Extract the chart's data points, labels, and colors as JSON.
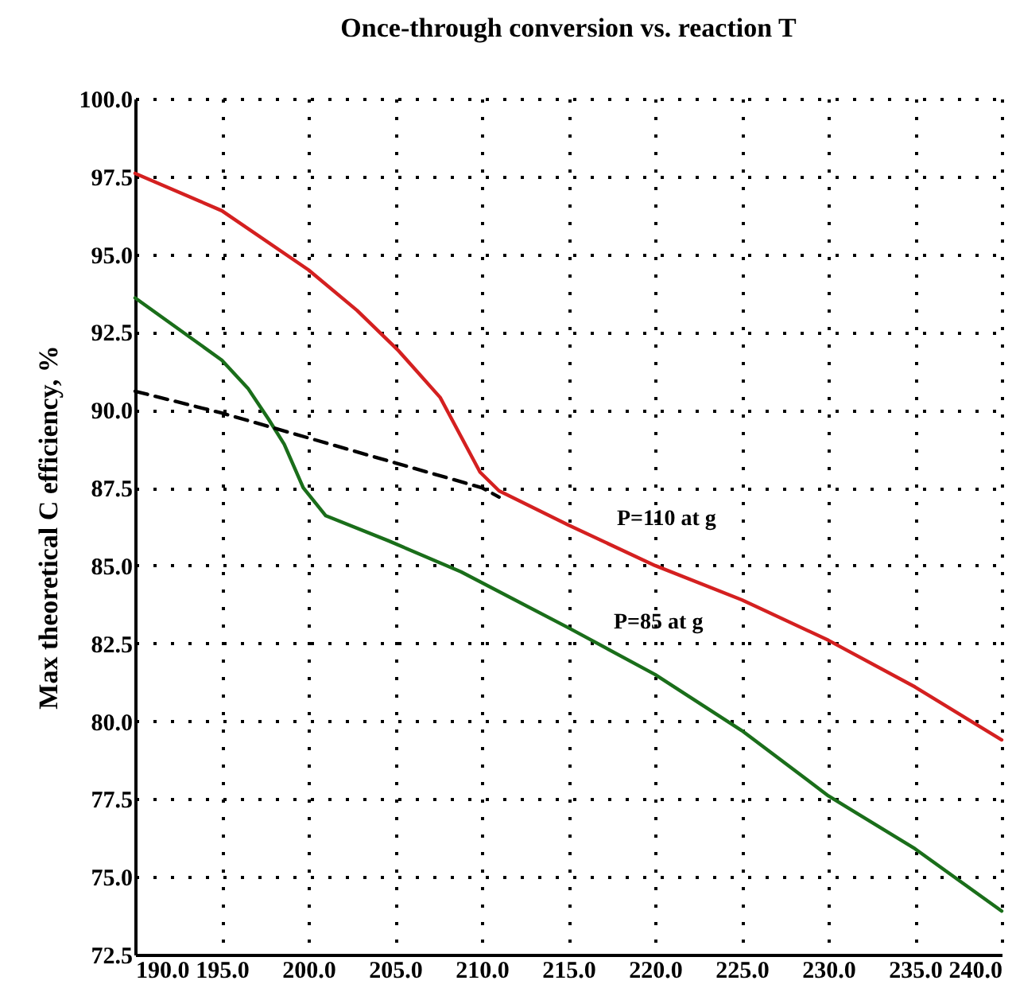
{
  "chart_data": {
    "type": "line",
    "title": "Once-through conversion vs. reaction T",
    "ylabel": "Max theoretical C efficiency, %",
    "xlim": [
      190,
      240
    ],
    "ylim": [
      72.5,
      100
    ],
    "xticks": [
      {
        "value": 190,
        "label": "190.0"
      },
      {
        "value": 195,
        "label": "195.0"
      },
      {
        "value": 200,
        "label": "200.0"
      },
      {
        "value": 205,
        "label": "205.0"
      },
      {
        "value": 210,
        "label": "210.0"
      },
      {
        "value": 215,
        "label": "215.0"
      },
      {
        "value": 220,
        "label": "220.0"
      },
      {
        "value": 225,
        "label": "225.0"
      },
      {
        "value": 230,
        "label": "230.0"
      },
      {
        "value": 235,
        "label": "235.0"
      },
      {
        "value": 240,
        "label": "240.0"
      }
    ],
    "yticks": [
      72.5,
      {
        "value": 75,
        "label": "75.0"
      },
      77.5,
      {
        "value": 80,
        "label": "80.0"
      },
      82.5,
      {
        "value": 85,
        "label": "85.0"
      },
      87.5,
      {
        "value": 90,
        "label": "90.0"
      },
      92.5,
      {
        "value": 95,
        "label": "95.0"
      },
      97.5,
      {
        "value": 100,
        "label": "100.0"
      }
    ],
    "grid": true,
    "series": [
      {
        "color": "#d42020",
        "line_style": "solid",
        "x": [
          190,
          195,
          200,
          202.8,
          205.2,
          207.6,
          209.9,
          211,
          215,
          220,
          225,
          230,
          235,
          240
        ],
        "values": [
          97.6,
          96.4,
          94.5,
          93.2,
          91.9,
          90.4,
          88,
          87.4,
          86.3,
          85,
          83.9,
          82.6,
          81.1,
          79.4
        ]
      },
      {
        "color": "#1a6e1a",
        "line_style": "solid",
        "x": [
          190,
          195,
          196.5,
          197.7,
          198.6,
          199.7,
          201,
          204.6,
          208.8,
          215,
          220,
          225,
          230,
          235,
          240
        ],
        "values": [
          93.6,
          91.6,
          90.7,
          89.7,
          88.9,
          87.5,
          86.6,
          85.8,
          84.8,
          83,
          81.5,
          79.7,
          77.6,
          75.9,
          73.9
        ]
      },
      {
        "color": "#000000",
        "line_style": "dashed",
        "x": [
          190,
          195,
          200,
          205,
          210,
          211
        ],
        "values": [
          90.6,
          89.9,
          89.1,
          88.3,
          87.5,
          87.2
        ]
      }
    ],
    "annotations": [
      "P=110 at g",
      "P=85 at g"
    ]
  }
}
